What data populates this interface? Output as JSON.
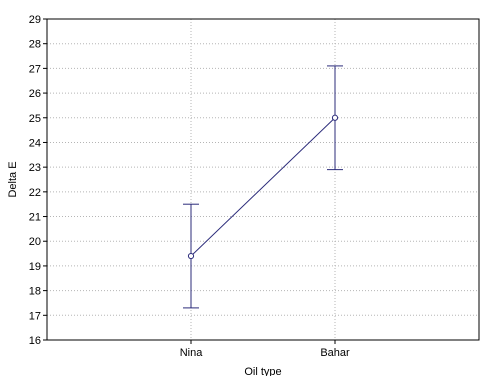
{
  "chart_data": {
    "type": "line",
    "title": "",
    "xlabel": "Oil type",
    "ylabel": "Delta E",
    "categories": [
      "Nina",
      "Bahar"
    ],
    "series": [
      {
        "values": [
          19.4,
          25.0
        ],
        "error_low": [
          17.3,
          22.9
        ],
        "error_high": [
          21.5,
          27.1
        ]
      }
    ],
    "ylim": [
      16,
      29
    ],
    "yticks": [
      16,
      17,
      18,
      19,
      20,
      21,
      22,
      23,
      24,
      25,
      26,
      27,
      28,
      29
    ],
    "grid": true,
    "line_color": "#2b2b7a",
    "marker": "open-circle"
  }
}
